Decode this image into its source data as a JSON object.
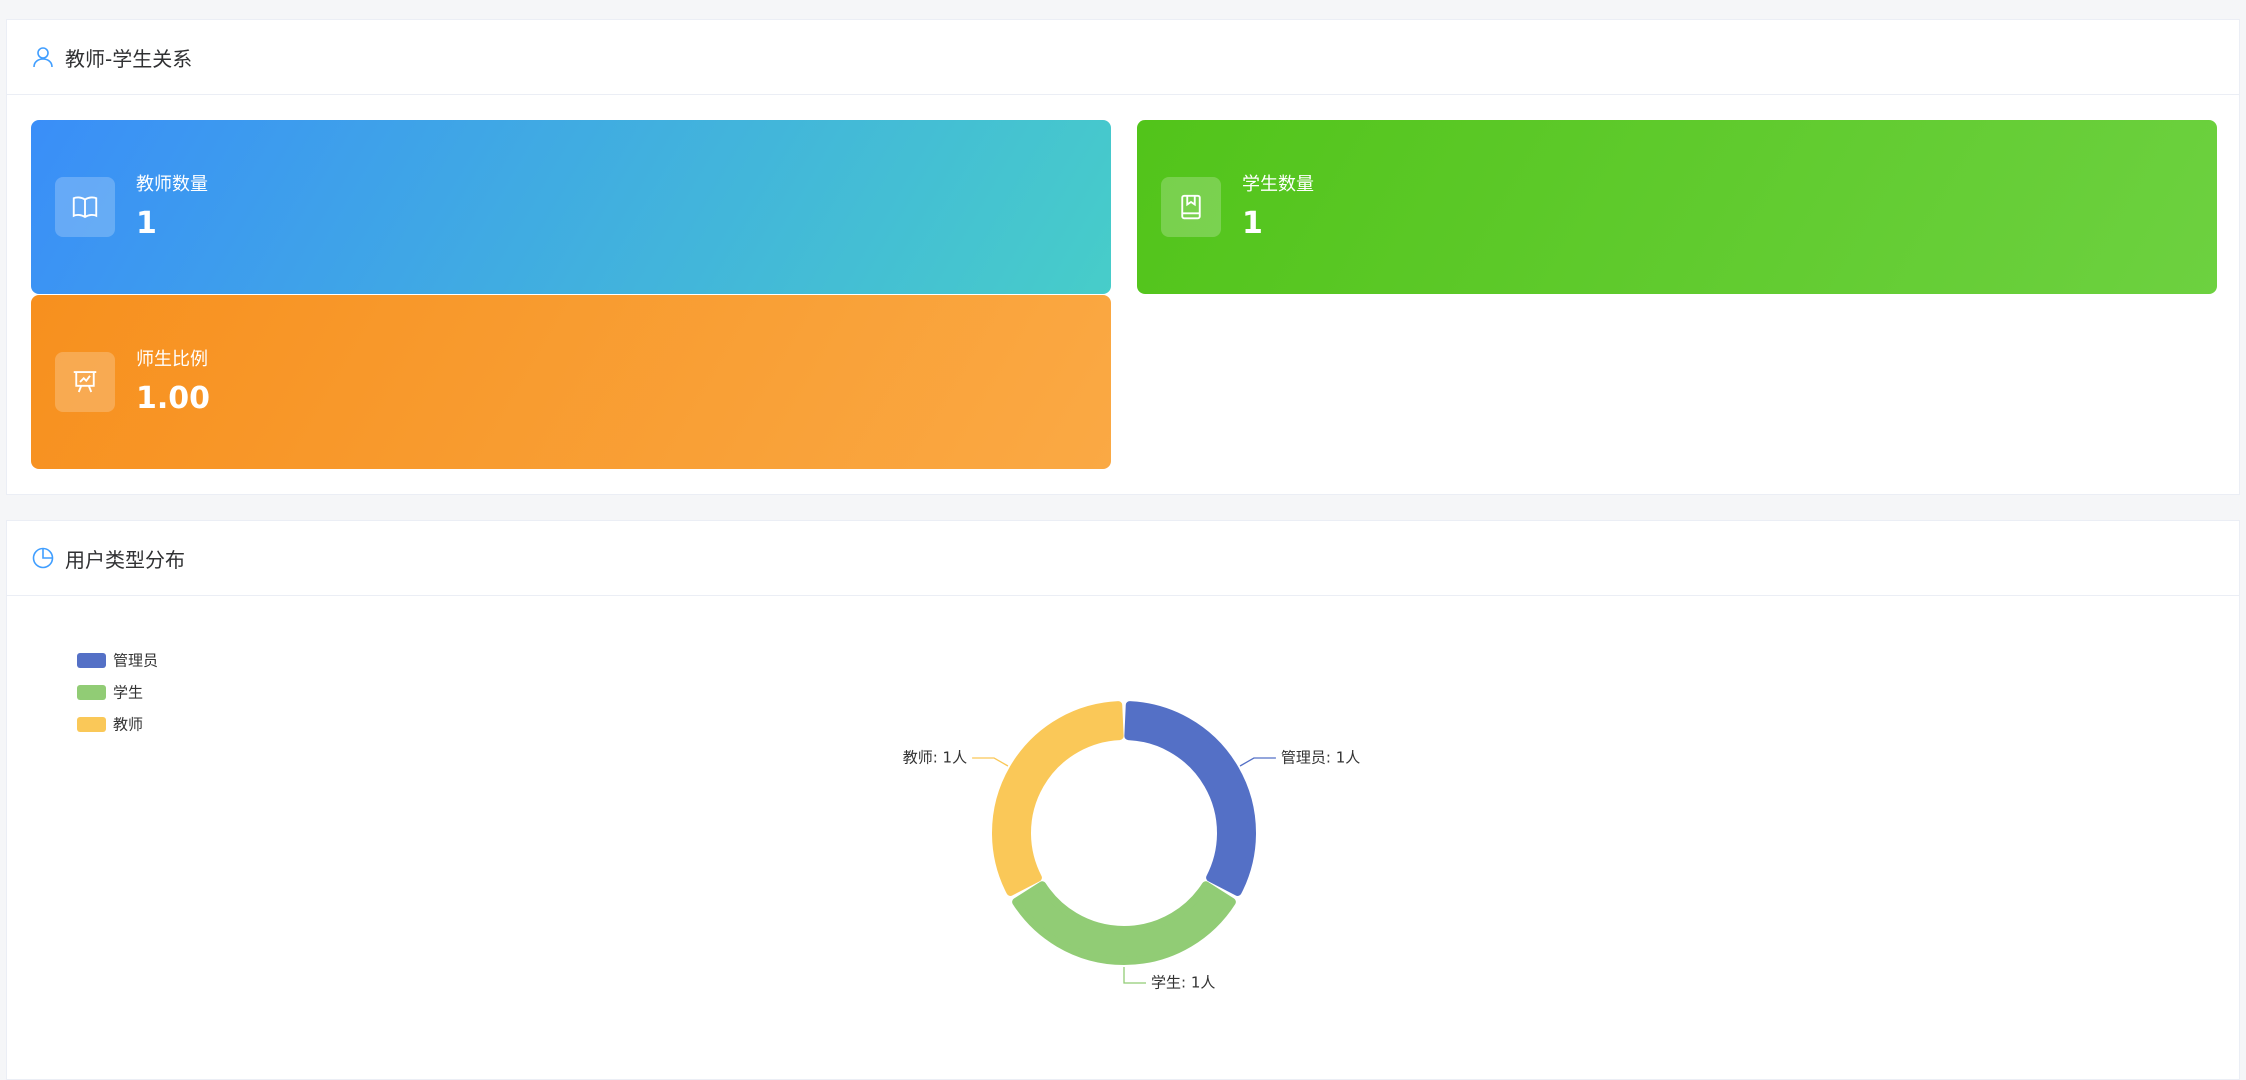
{
  "section_stats": {
    "title": "教师-学生关系"
  },
  "stats": [
    {
      "label": "教师数量",
      "value": "1"
    },
    {
      "label": "学生数量",
      "value": "1"
    },
    {
      "label": "师生比例",
      "value": "1.00"
    }
  ],
  "chart_data": {
    "type": "pie",
    "title": "用户类型分布",
    "categories": [
      "管理员",
      "学生",
      "教师"
    ],
    "values": [
      1,
      1,
      1
    ],
    "value_labels": [
      "管理员: 1人",
      "学生: 1人",
      "教师: 1人"
    ],
    "colors": [
      "#5470c6",
      "#91cc75",
      "#fac858"
    ],
    "legend": "top-left"
  }
}
